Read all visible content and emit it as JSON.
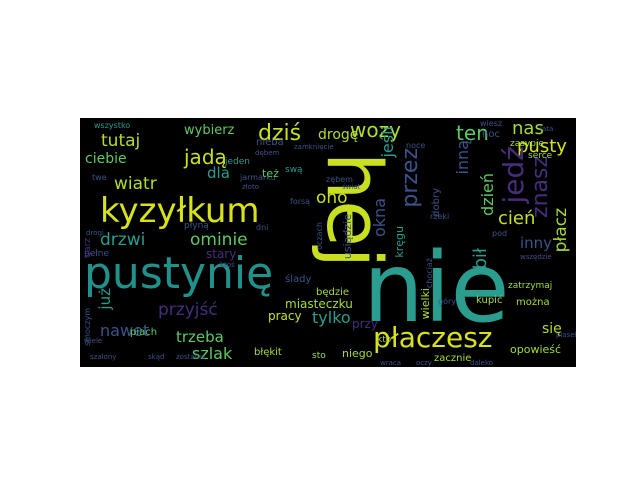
{
  "wordcloud": {
    "background": "#000000",
    "words": {
      "nie": "nie",
      "hej": "hej",
      "pustynie": "pustynię",
      "kyzylkum": "kyzyłkum",
      "placzesz": "płaczesz",
      "dzis": "dziś",
      "wozy": "wozy",
      "ten": "ten",
      "nas": "nas",
      "pusty": "pusty",
      "tutaj": "tutaj",
      "jada": "jadą",
      "wybierz": "wybierz",
      "droge": "drogę",
      "ciebie": "ciebie",
      "wiatr": "wiatr",
      "dla": "dla",
      "oho": "oho",
      "jesli": "jeśli",
      "przez": "przez",
      "jedz": "jedź",
      "znasz": "znasz",
      "inna": "inną",
      "drzwi": "drzwi",
      "ominie": "ominie",
      "okna": "okna",
      "dzien": "dzień",
      "bil": "bił",
      "cien": "cień",
      "inny": "inny",
      "placz": "płacz",
      "juz": "już",
      "przyjsc": "przyjść",
      "nawet": "nawet",
      "trzeba": "trzeba",
      "szlak": "szlak",
      "pracy": "pracy",
      "tylko": "tylko",
      "miasteczku": "miasteczku",
      "sie": "się",
      "opowiesc": "opowieść",
      "zacznie": "zacznie",
      "blekit": "błękit",
      "niego": "niego",
      "kto": "kto",
      "sto": "sto",
      "piach": "piach",
      "wielki": "wielki",
      "mozna": "można",
      "kupic": "kupić",
      "zatrzymaj": "zatrzymaj",
      "serce": "serce",
      "zasypie": "zasypie",
      "dobry": "dobry",
      "kregu": "kręgu",
      "usiadzie": "usiądzie",
      "bedzie": "będzie",
      "slady": "ślady",
      "przy": "przy",
      "stary": "stary",
      "pelne": "pełne",
      "plyna": "płyną",
      "nieba": "nieba",
      "noc": "noc",
      "jeden": "jeden",
      "wszystko": "wszystko",
      "jarmarku": "jarmarku",
      "zebem": "zębem",
      "oczach": "oczach",
      "forsa": "forsą",
      "swa": "swą",
      "tez": "też",
      "smoczym": "smoczym",
      "garz": "garz",
      "wiesz": "wiesz",
      "twe": "twe",
      "gory": "góry",
      "noce": "noce",
      "dni": "dni",
      "rzeki": "rzeki",
      "zamknicie": "zamknięcie",
      "debem": "dębem",
      "chociaz": "chociaż",
      "pod": "pod",
      "szalony": "szalony",
      "zostanie": "zostanie",
      "skad": "skąd",
      "zloto": "złoto",
      "wszedzie": "wszędzie",
      "piasek": "piasek",
      "drogi": "drogi",
      "wraca": "wraca",
      "daleko": "daleko",
      "lata": "lata",
      "ktos": "ktoś",
      "swiat": "świat",
      "oczy": "oczy",
      "wiele": "wiele"
    },
    "colors": {
      "yellow": "#d8e219",
      "teal": "#2a9d8f",
      "blue": "#3b528b",
      "purple": "#472d7b",
      "dark": "#3e1a5a",
      "green": "#5ec962",
      "lime": "#a5db36"
    }
  }
}
